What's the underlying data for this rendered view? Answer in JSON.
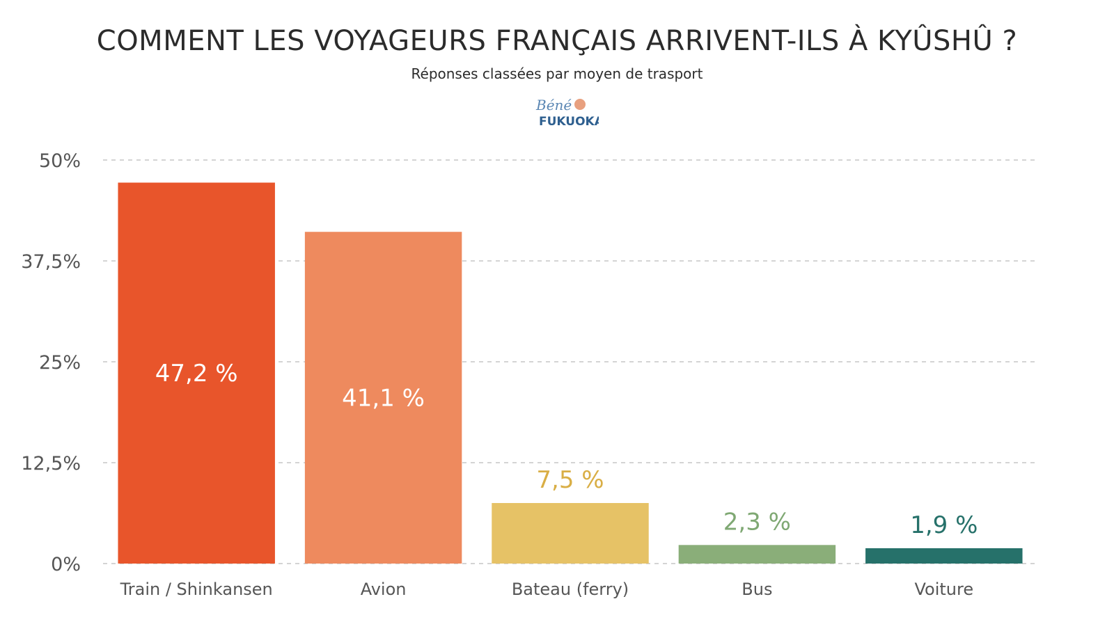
{
  "title": "COMMENT LES VOYAGEURS FRANÇAIS ARRIVENT-ILS À KYÛSHÛ ?",
  "subtitle": "Réponses classées par moyen de trasport",
  "logo": {
    "line1": "Béné",
    "line2": "FUKUOKA!"
  },
  "chart_data": {
    "type": "bar",
    "title": "COMMENT LES VOYAGEURS FRANÇAIS ARRIVENT-ILS À KYÛSHÛ ?",
    "subtitle": "Réponses classées par moyen de trasport",
    "categories": [
      "Train / Shinkansen",
      "Avion",
      "Bateau (ferry)",
      "Bus",
      "Voiture"
    ],
    "values": [
      47.2,
      41.1,
      7.5,
      2.3,
      1.9
    ],
    "value_labels": [
      "47,2 %",
      "41,1 %",
      "7,5 %",
      "2,3 %",
      "1,9 %"
    ],
    "label_inside": [
      true,
      true,
      false,
      false,
      false
    ],
    "colors": [
      "#e8552b",
      "#ee8a5e",
      "#e6c266",
      "#8aae79",
      "#26716a"
    ],
    "label_colors": [
      "#ffffff",
      "#ffffff",
      "#d9ae45",
      "#7fa873",
      "#26716a"
    ],
    "yticks": [
      0,
      12.5,
      25,
      37.5,
      50
    ],
    "ytick_labels": [
      "0%",
      "12,5%",
      "25%",
      "37,5%",
      "50%"
    ],
    "ylim": [
      0,
      50
    ],
    "grid": true
  }
}
